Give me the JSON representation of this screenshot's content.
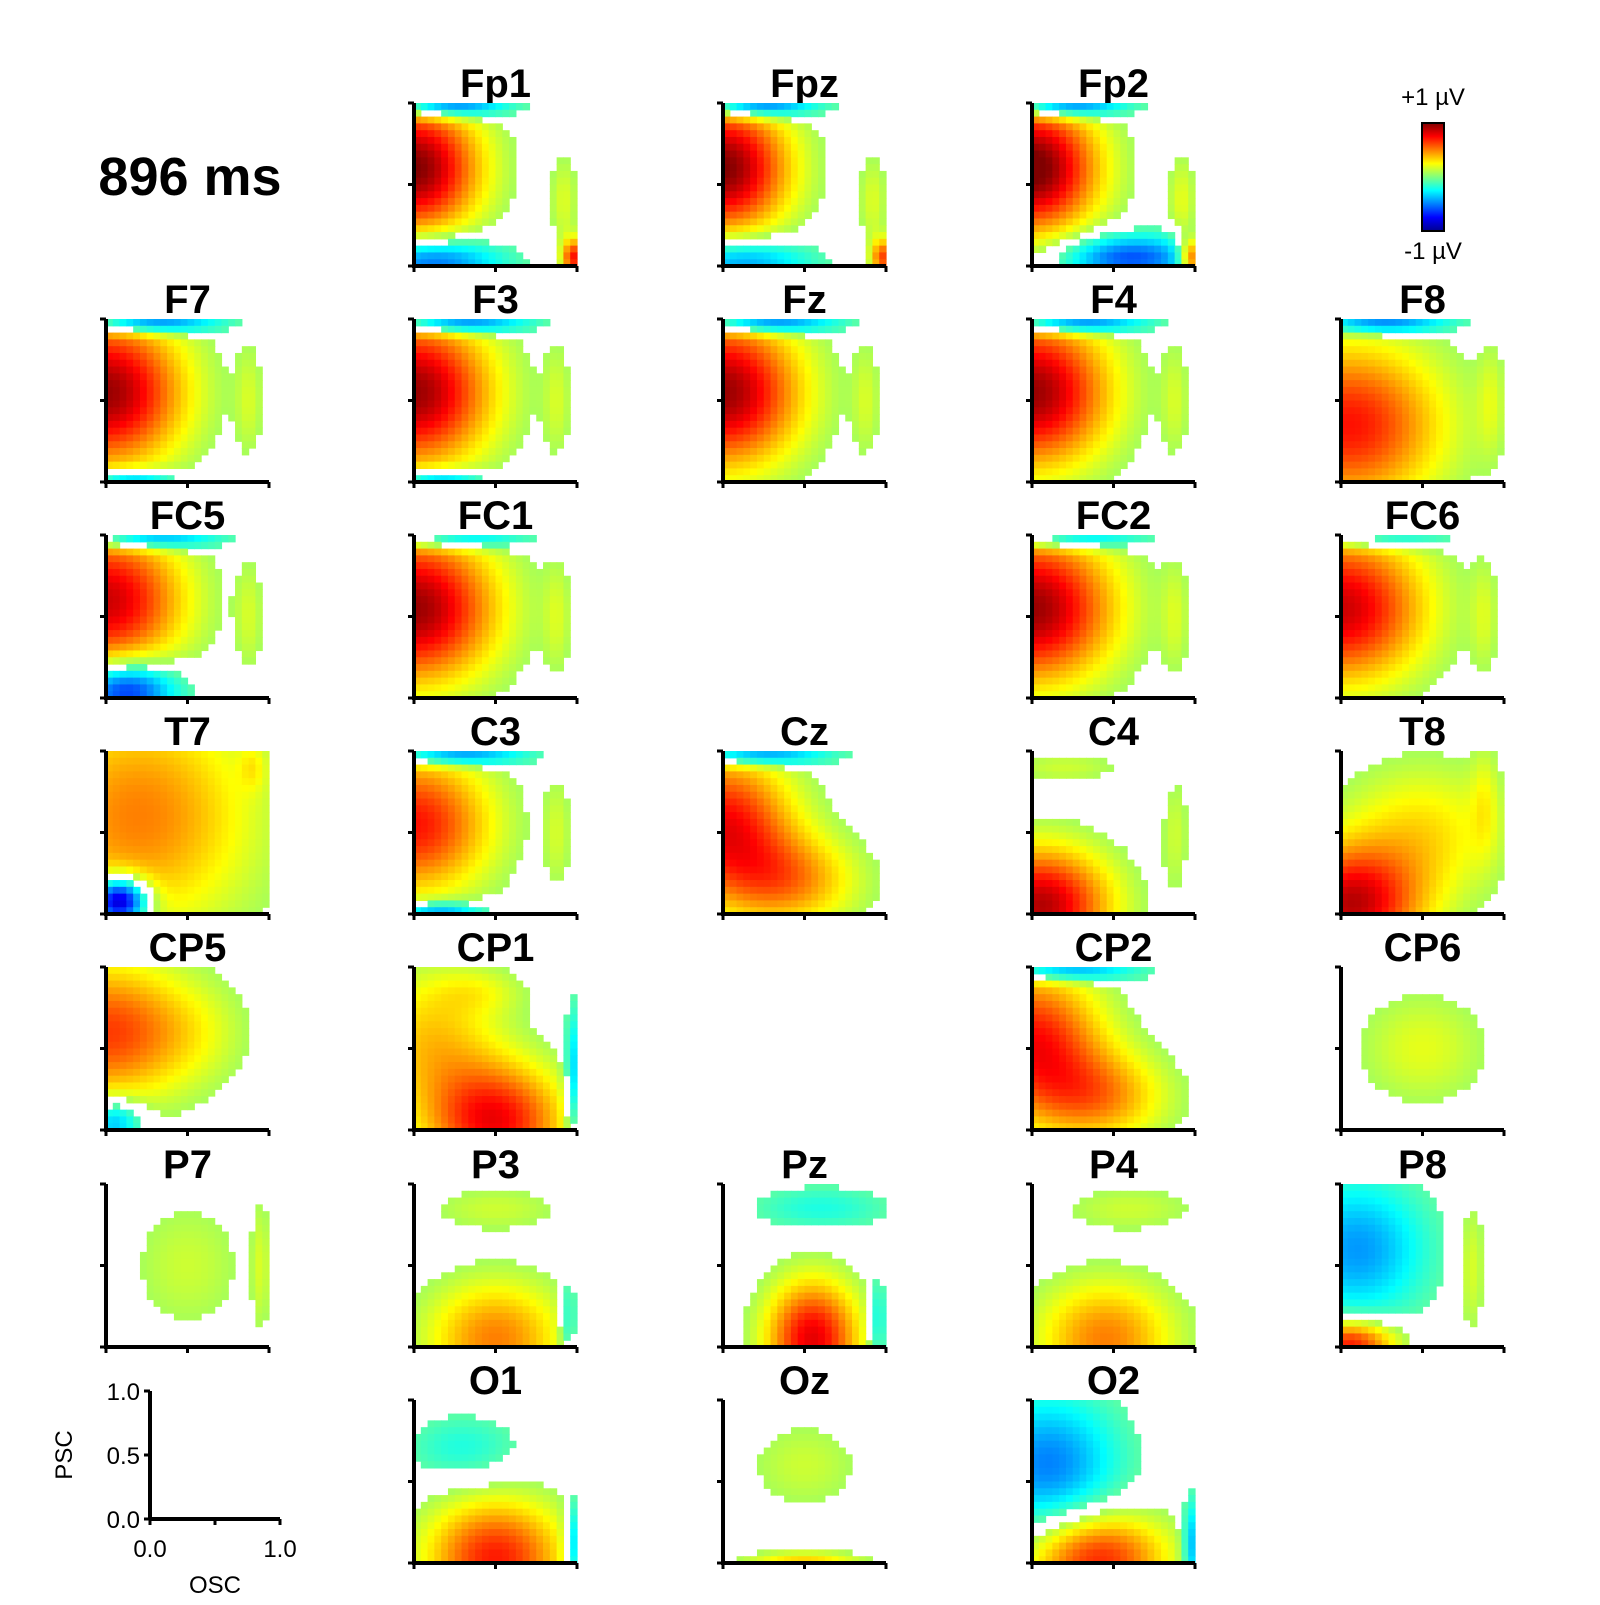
{
  "time_label": "896 ms",
  "colorbar": {
    "max_label": "+1 µV",
    "min_label": "-1 µV"
  },
  "key_axes": {
    "xlabel": "OSC",
    "ylabel": "PSC",
    "xticks": [
      "0.0",
      "1.0"
    ],
    "yticks": [
      "1.0",
      "0.5",
      "0.0"
    ]
  },
  "chart_data": {
    "type": "heatmap",
    "title": "896 ms",
    "xlabel": "OSC",
    "ylabel": "PSC",
    "xlim": [
      0,
      1
    ],
    "ylim": [
      0,
      1
    ],
    "color_range": [
      -1,
      1
    ],
    "unit": "µV",
    "colormap": "jet",
    "colors": {
      "neg": "#0000a0",
      "zero": "#40ffb0",
      "pos": "#c00000"
    },
    "panels": [
      {
        "name": "Fp1",
        "row": 0,
        "col": 1,
        "blobs": [
          [
            0.0,
            0.6,
            0.28,
            0.28,
            1.0
          ],
          [
            0.1,
            0.03,
            0.3,
            0.1,
            -0.6
          ],
          [
            0.2,
            0.98,
            0.25,
            0.05,
            -0.7
          ],
          [
            0.92,
            0.4,
            0.06,
            0.2,
            0.18
          ],
          [
            0.98,
            0.05,
            0.05,
            0.08,
            0.7
          ]
        ]
      },
      {
        "name": "Fpz",
        "row": 0,
        "col": 2,
        "blobs": [
          [
            0.0,
            0.6,
            0.28,
            0.28,
            1.0
          ],
          [
            0.1,
            0.03,
            0.3,
            0.1,
            -0.5
          ],
          [
            0.2,
            0.98,
            0.25,
            0.05,
            -0.7
          ],
          [
            0.92,
            0.4,
            0.06,
            0.2,
            0.18
          ],
          [
            0.98,
            0.05,
            0.05,
            0.08,
            0.6
          ]
        ]
      },
      {
        "name": "Fp2",
        "row": 0,
        "col": 3,
        "blobs": [
          [
            0.0,
            0.6,
            0.28,
            0.28,
            1.05
          ],
          [
            0.6,
            0.05,
            0.3,
            0.1,
            -0.6
          ],
          [
            0.2,
            0.98,
            0.25,
            0.05,
            -0.7
          ],
          [
            0.92,
            0.4,
            0.06,
            0.2,
            0.2
          ],
          [
            0.98,
            0.05,
            0.05,
            0.08,
            0.7
          ]
        ]
      },
      {
        "name": "F7",
        "row": 1,
        "col": 0,
        "blobs": [
          [
            0.0,
            0.55,
            0.33,
            0.32,
            0.95
          ],
          [
            0.25,
            0.97,
            0.3,
            0.04,
            -0.7
          ],
          [
            0.15,
            0.02,
            0.2,
            0.04,
            -0.5
          ],
          [
            0.88,
            0.5,
            0.06,
            0.25,
            0.15
          ]
        ]
      },
      {
        "name": "F3",
        "row": 1,
        "col": 1,
        "blobs": [
          [
            0.0,
            0.55,
            0.33,
            0.32,
            0.95
          ],
          [
            0.25,
            0.97,
            0.3,
            0.04,
            -0.7
          ],
          [
            0.15,
            0.02,
            0.2,
            0.04,
            -0.5
          ],
          [
            0.88,
            0.5,
            0.06,
            0.25,
            0.15
          ]
        ]
      },
      {
        "name": "Fz",
        "row": 1,
        "col": 2,
        "blobs": [
          [
            0.0,
            0.55,
            0.33,
            0.32,
            0.95
          ],
          [
            0.25,
            0.97,
            0.3,
            0.04,
            -0.7
          ],
          [
            0.88,
            0.5,
            0.06,
            0.25,
            0.15
          ]
        ]
      },
      {
        "name": "F4",
        "row": 1,
        "col": 3,
        "blobs": [
          [
            0.0,
            0.55,
            0.33,
            0.32,
            0.95
          ],
          [
            0.25,
            0.97,
            0.3,
            0.04,
            -0.7
          ],
          [
            0.88,
            0.5,
            0.06,
            0.25,
            0.15
          ]
        ]
      },
      {
        "name": "F8",
        "row": 1,
        "col": 4,
        "blobs": [
          [
            0.05,
            0.35,
            0.4,
            0.35,
            0.72
          ],
          [
            0.25,
            0.97,
            0.3,
            0.04,
            -0.6
          ],
          [
            0.92,
            0.5,
            0.06,
            0.25,
            0.15
          ]
        ]
      },
      {
        "name": "FC5",
        "row": 2,
        "col": 0,
        "blobs": [
          [
            0.0,
            0.6,
            0.33,
            0.3,
            0.85
          ],
          [
            0.25,
            0.97,
            0.3,
            0.04,
            -0.6
          ],
          [
            0.12,
            0.05,
            0.22,
            0.12,
            -0.75
          ],
          [
            0.88,
            0.5,
            0.06,
            0.25,
            0.15
          ]
        ]
      },
      {
        "name": "FC1",
        "row": 2,
        "col": 1,
        "blobs": [
          [
            0.0,
            0.55,
            0.35,
            0.32,
            0.95
          ],
          [
            0.25,
            0.97,
            0.3,
            0.04,
            -0.5
          ],
          [
            0.88,
            0.5,
            0.06,
            0.25,
            0.15
          ]
        ]
      },
      {
        "name": "FC2",
        "row": 2,
        "col": 3,
        "blobs": [
          [
            0.0,
            0.55,
            0.35,
            0.32,
            0.95
          ],
          [
            0.25,
            0.97,
            0.3,
            0.04,
            -0.5
          ],
          [
            0.88,
            0.5,
            0.06,
            0.25,
            0.15
          ]
        ]
      },
      {
        "name": "FC6",
        "row": 2,
        "col": 4,
        "blobs": [
          [
            0.0,
            0.55,
            0.36,
            0.32,
            0.85
          ],
          [
            0.25,
            0.97,
            0.3,
            0.04,
            -0.4
          ],
          [
            0.88,
            0.5,
            0.06,
            0.25,
            0.15
          ]
        ]
      },
      {
        "name": "T7",
        "row": 3,
        "col": 0,
        "blobs": [
          [
            0.2,
            0.6,
            0.5,
            0.5,
            0.5
          ],
          [
            0.08,
            0.08,
            0.12,
            0.1,
            -1.1
          ],
          [
            0.9,
            0.9,
            0.06,
            0.1,
            0.15
          ]
        ]
      },
      {
        "name": "C3",
        "row": 3,
        "col": 1,
        "blobs": [
          [
            0.0,
            0.55,
            0.33,
            0.3,
            0.72
          ],
          [
            0.25,
            0.97,
            0.3,
            0.04,
            -0.6
          ],
          [
            0.15,
            0.02,
            0.2,
            0.04,
            -0.5
          ],
          [
            0.88,
            0.5,
            0.06,
            0.25,
            0.15
          ]
        ]
      },
      {
        "name": "Cz",
        "row": 3,
        "col": 2,
        "blobs": [
          [
            0.0,
            0.55,
            0.3,
            0.3,
            0.75
          ],
          [
            0.4,
            0.2,
            0.3,
            0.2,
            0.45
          ],
          [
            0.2,
            0.97,
            0.3,
            0.04,
            -0.6
          ]
        ]
      },
      {
        "name": "C4",
        "row": 3,
        "col": 3,
        "blobs": [
          [
            0.05,
            0.05,
            0.3,
            0.25,
            0.9
          ],
          [
            0.2,
            0.9,
            0.25,
            0.07,
            0.15
          ],
          [
            0.88,
            0.5,
            0.06,
            0.25,
            0.15
          ]
        ]
      },
      {
        "name": "T8",
        "row": 3,
        "col": 4,
        "blobs": [
          [
            0.05,
            0.05,
            0.3,
            0.25,
            0.85
          ],
          [
            0.5,
            0.5,
            0.35,
            0.3,
            0.3
          ],
          [
            0.88,
            0.7,
            0.06,
            0.25,
            0.15
          ]
        ]
      },
      {
        "name": "CP5",
        "row": 4,
        "col": 0,
        "blobs": [
          [
            0.0,
            0.6,
            0.33,
            0.3,
            0.62
          ],
          [
            0.05,
            0.05,
            0.12,
            0.1,
            -0.45
          ],
          [
            0.55,
            0.6,
            0.25,
            0.25,
            0.15
          ]
        ]
      },
      {
        "name": "CP1",
        "row": 4,
        "col": 1,
        "blobs": [
          [
            0.5,
            0.05,
            0.3,
            0.25,
            0.75
          ],
          [
            0.1,
            0.55,
            0.3,
            0.3,
            0.35
          ],
          [
            0.98,
            0.3,
            0.04,
            0.3,
            -0.4
          ],
          [
            0.4,
            0.85,
            0.2,
            0.1,
            0.15
          ]
        ]
      },
      {
        "name": "CP2",
        "row": 4,
        "col": 3,
        "blobs": [
          [
            0.0,
            0.55,
            0.3,
            0.3,
            0.72
          ],
          [
            0.4,
            0.2,
            0.3,
            0.2,
            0.45
          ],
          [
            0.2,
            0.97,
            0.3,
            0.04,
            -0.55
          ]
        ]
      },
      {
        "name": "CP6",
        "row": 4,
        "col": 4,
        "blobs": [
          [
            0.5,
            0.5,
            0.28,
            0.25,
            0.2
          ]
        ]
      },
      {
        "name": "P7",
        "row": 5,
        "col": 0,
        "blobs": [
          [
            0.5,
            0.5,
            0.25,
            0.3,
            0.15
          ],
          [
            0.95,
            0.5,
            0.04,
            0.3,
            0.15
          ]
        ]
      },
      {
        "name": "P3",
        "row": 5,
        "col": 1,
        "blobs": [
          [
            0.5,
            0.05,
            0.3,
            0.25,
            0.5
          ],
          [
            0.5,
            0.85,
            0.3,
            0.1,
            0.15
          ],
          [
            0.95,
            0.15,
            0.04,
            0.2,
            -0.3
          ]
        ]
      },
      {
        "name": "Pz",
        "row": 5,
        "col": 2,
        "blobs": [
          [
            0.55,
            0.05,
            0.2,
            0.25,
            0.8
          ],
          [
            0.6,
            0.85,
            0.3,
            0.1,
            -0.2
          ],
          [
            0.95,
            0.15,
            0.04,
            0.2,
            -0.3
          ]
        ]
      },
      {
        "name": "P4",
        "row": 5,
        "col": 3,
        "blobs": [
          [
            0.45,
            0.05,
            0.3,
            0.25,
            0.5
          ],
          [
            0.6,
            0.85,
            0.3,
            0.1,
            0.15
          ]
        ]
      },
      {
        "name": "P8",
        "row": 5,
        "col": 4,
        "blobs": [
          [
            0.1,
            0.6,
            0.3,
            0.3,
            -0.45
          ],
          [
            0.05,
            0.02,
            0.2,
            0.1,
            0.75
          ],
          [
            0.8,
            0.5,
            0.06,
            0.3,
            0.2
          ]
        ]
      },
      {
        "name": "O1",
        "row": 6,
        "col": 1,
        "blobs": [
          [
            0.5,
            0.03,
            0.3,
            0.25,
            0.7
          ],
          [
            0.3,
            0.7,
            0.25,
            0.15,
            -0.2
          ],
          [
            0.98,
            0.1,
            0.04,
            0.2,
            -0.45
          ]
        ]
      },
      {
        "name": "Oz",
        "row": 6,
        "col": 2,
        "blobs": [
          [
            0.5,
            0.6,
            0.25,
            0.2,
            0.15
          ],
          [
            0.5,
            0.0,
            0.25,
            0.05,
            0.35
          ]
        ]
      },
      {
        "name": "O2",
        "row": 6,
        "col": 3,
        "blobs": [
          [
            0.1,
            0.6,
            0.3,
            0.3,
            -0.5
          ],
          [
            0.4,
            0.03,
            0.3,
            0.2,
            0.7
          ],
          [
            0.98,
            0.1,
            0.04,
            0.2,
            -0.45
          ]
        ]
      }
    ]
  }
}
